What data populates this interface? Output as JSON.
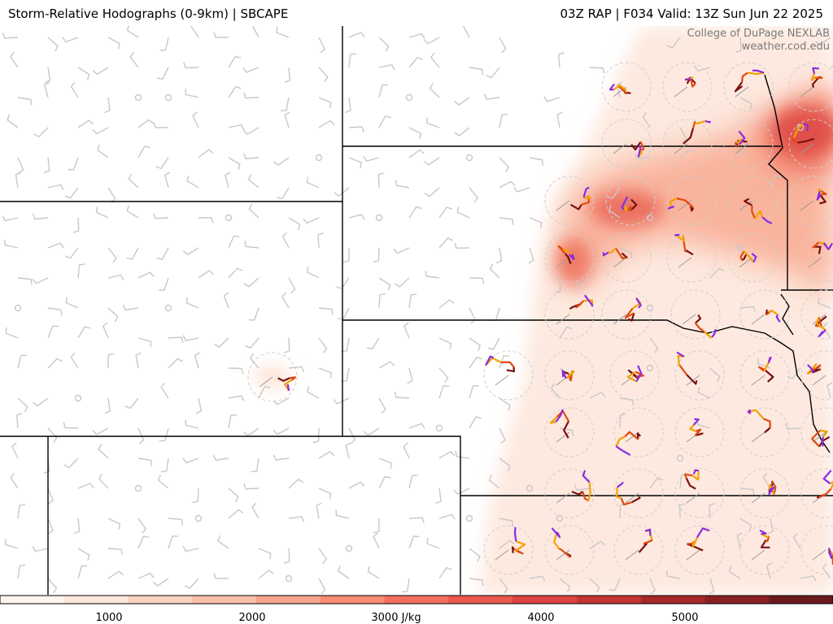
{
  "header": {
    "title_left": "Storm-Relative Hodographs (0-9km) | SBCAPE",
    "title_right": "03Z RAP | F034 Valid: 13Z Sun Jun 22 2025"
  },
  "credit": {
    "line1": "College of DuPage NEXLAB",
    "line2": "weather.cod.edu"
  },
  "colorbar": {
    "ticks": [
      "1000",
      "2000",
      "3000 J/kg",
      "4000",
      "5000"
    ],
    "colors": [
      "#fff5ee",
      "#fde6da",
      "#fcd3c1",
      "#fbbfa8",
      "#f9a58d",
      "#f78b74",
      "#f26f5f",
      "#ea574f",
      "#dc4441",
      "#c43432",
      "#a82828",
      "#8a1f22",
      "#6b1a1e"
    ]
  },
  "legend_colors": {
    "hodo_layer_0_1km": "#7a1010",
    "hodo_layer_1_3km": "#e04a10",
    "hodo_layer_3_6km": "#f5a000",
    "hodo_layer_6_9km": "#8a2be2",
    "boundaries": "#000000",
    "barbs": "#c8c8c8"
  }
}
